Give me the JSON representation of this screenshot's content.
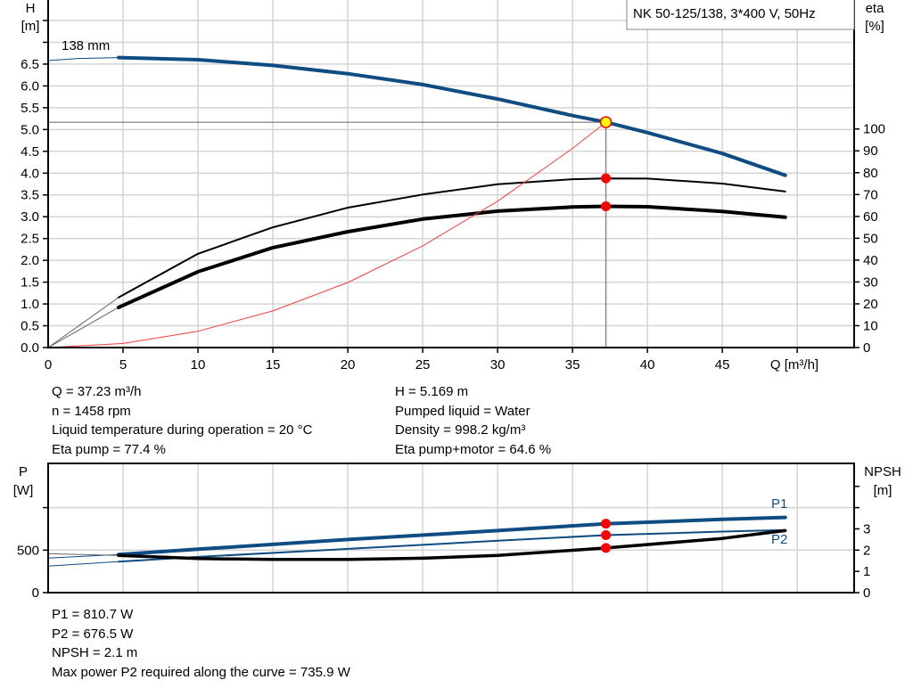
{
  "chart_data": [
    {
      "type": "line",
      "title": "NK 50-125/138, 3*400 V, 50Hz",
      "curve_label": "138 mm",
      "xlabel": "Q [m³/h]",
      "ylabel_left": [
        "H",
        "[m]"
      ],
      "ylabel_right": [
        "eta",
        "[%]"
      ],
      "xlim": [
        0,
        53.8
      ],
      "ylim_left": [
        0,
        7.97
      ],
      "ylim_right": [
        0,
        159
      ],
      "grid": true,
      "x_ticks": [
        "0",
        "5",
        "10",
        "15",
        "20",
        "25",
        "30",
        "35",
        "40",
        "45"
      ],
      "y_left_ticks": [
        "0.0",
        "0.5",
        "1.0",
        "1.5",
        "2.0",
        "2.5",
        "3.0",
        "3.5",
        "4.0",
        "4.5",
        "5.0",
        "5.5",
        "6.0",
        "6.5"
      ],
      "y_right_ticks": [
        "0",
        "10",
        "20",
        "30",
        "40",
        "50",
        "60",
        "70",
        "80",
        "90",
        "100"
      ],
      "series": [
        {
          "key": "head",
          "axis": "left",
          "color": "#0f4c81",
          "extension": {
            "x": [
              0,
              2,
              4.7
            ],
            "y": [
              6.58,
              6.63,
              6.65
            ]
          },
          "x": [
            4.7,
            10,
            15,
            20,
            25,
            30,
            35,
            37.23,
            40,
            45,
            49.2
          ],
          "y": [
            6.65,
            6.6,
            6.47,
            6.28,
            6.03,
            5.7,
            5.32,
            5.169,
            4.93,
            4.45,
            3.95
          ]
        },
        {
          "key": "eta-pump",
          "axis": "right",
          "color": "#000000",
          "extension": {
            "x": [
              0,
              4.7
            ],
            "y": [
              0,
              22.9
            ]
          },
          "x": [
            4.7,
            10,
            15,
            20,
            25,
            30,
            35,
            37.23,
            40,
            45,
            49.2
          ],
          "y": [
            22.9,
            42.9,
            55,
            64,
            70,
            74.7,
            77,
            77.4,
            77.3,
            75,
            71.4
          ]
        },
        {
          "key": "eta-pump-motor",
          "axis": "right",
          "color": "#000000",
          "extension": {
            "x": [
              0,
              4.7
            ],
            "y": [
              0,
              18.4
            ]
          },
          "x": [
            4.7,
            10,
            15,
            20,
            25,
            30,
            35,
            37.23,
            40,
            45,
            49.2
          ],
          "y": [
            18.4,
            34.7,
            45.7,
            53,
            58.8,
            62.4,
            64.3,
            64.6,
            64.4,
            62.3,
            59.6
          ]
        },
        {
          "key": "system-curve",
          "axis": "left",
          "color": "#ff3b3b",
          "x": [
            0,
            5,
            10,
            15,
            20,
            25,
            30,
            35,
            37.23
          ],
          "y": [
            0,
            0.093,
            0.373,
            0.839,
            1.492,
            2.331,
            3.356,
            4.568,
            5.169
          ]
        }
      ],
      "operating_point": {
        "q": 37.23,
        "h": 5.169,
        "eta_pump": 77.4,
        "eta_pump_motor": 64.6,
        "marker_color": "#ffff00",
        "dot_color": "#ff0000"
      }
    },
    {
      "type": "line",
      "ylabel_left": [
        "P",
        "[W]"
      ],
      "ylabel_right": [
        "NPSH",
        "[m]"
      ],
      "xlim": [
        0,
        53.8
      ],
      "ylim_left": [
        0,
        1520
      ],
      "ylim_right": [
        0,
        6.08
      ],
      "grid": true,
      "y_left_ticks": [
        "0",
        "500",
        ""
      ],
      "y_right_ticks": [
        "0",
        "1",
        "2",
        "3",
        "",
        ""
      ],
      "series": [
        {
          "key": "p1",
          "name": "P1",
          "axis": "left",
          "color": "#0f4c81",
          "extension": {
            "x": [
              0,
              4.7
            ],
            "y": [
              406,
              448
            ]
          },
          "x": [
            4.7,
            10,
            20,
            30,
            37.23,
            45,
            49.2
          ],
          "y": [
            448,
            510,
            625,
            730,
            810.7,
            862,
            885
          ]
        },
        {
          "key": "p2",
          "name": "P2",
          "axis": "left",
          "color": "#0f4c81",
          "extension": {
            "x": [
              0,
              4.7
            ],
            "y": [
              312,
              365
            ]
          },
          "x": [
            4.7,
            10,
            20,
            30,
            37.23,
            45,
            49.2
          ],
          "y": [
            365,
            420,
            515,
            610,
            676.5,
            718,
            735.9
          ]
        },
        {
          "key": "npsh",
          "axis": "right",
          "color": "#000000",
          "extension": {
            "x": [
              0,
              4.7
            ],
            "y": [
              1.83,
              1.75
            ]
          },
          "x": [
            4.7,
            10,
            15,
            20,
            25,
            30,
            37.23,
            45,
            49.2
          ],
          "y": [
            1.75,
            1.6,
            1.56,
            1.56,
            1.62,
            1.75,
            2.1,
            2.55,
            2.92
          ]
        }
      ],
      "operating_point": {
        "q": 37.23,
        "p1": 810.7,
        "p2": 676.5,
        "npsh": 2.1,
        "dot_color": "#ff0000"
      }
    }
  ],
  "info_top_left": [
    "Q = 37.23 m³/h",
    "n = 1458 rpm",
    "Liquid temperature during operation = 20 °C",
    "Eta pump = 77.4 %"
  ],
  "info_top_right": [
    "H = 5.169 m",
    "Pumped liquid = Water",
    "Density = 998.2 kg/m³",
    "Eta pump+motor = 64.6 %"
  ],
  "info_bottom": [
    "P1 = 810.7 W",
    "P2 = 676.5 W",
    "NPSH = 2.1 m",
    "Max power P2 required along the curve = 735.9 W"
  ]
}
